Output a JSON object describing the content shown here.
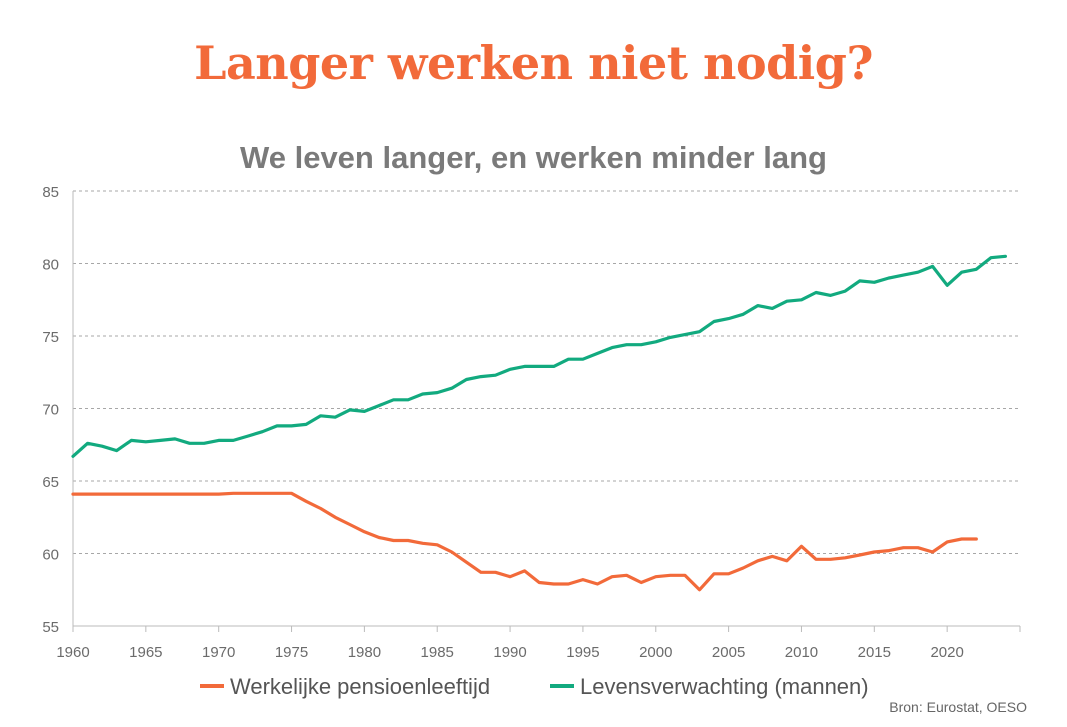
{
  "header": {
    "title": "Langer werken niet nodig?",
    "subtitle": "We leven langer, en werken minder lang"
  },
  "source": "Bron: Eurostat, OESO",
  "colors": {
    "title": "#f26a3a",
    "subtitle": "#7a7a7a",
    "pension": "#f26a3a",
    "life": "#12aa7f",
    "grid": "#8a8a8a",
    "axis": "#bbbbbb"
  },
  "chart_data": {
    "type": "line",
    "title": "We leven langer, en werken minder lang",
    "xlabel": "",
    "ylabel": "",
    "xlim": [
      1960,
      2025
    ],
    "ylim": [
      55,
      85
    ],
    "xticks": [
      1960,
      1965,
      1970,
      1975,
      1980,
      1985,
      1990,
      1995,
      2000,
      2005,
      2010,
      2015,
      2020
    ],
    "yticks": [
      55,
      60,
      65,
      70,
      75,
      80,
      85
    ],
    "grid": true,
    "legend": "bottom",
    "series": [
      {
        "name": "Werkelijke pensioenleeftijd",
        "color": "#f26a3a",
        "x": [
          1960,
          1961,
          1962,
          1963,
          1964,
          1965,
          1966,
          1967,
          1968,
          1969,
          1970,
          1971,
          1972,
          1973,
          1974,
          1975,
          1976,
          1977,
          1978,
          1979,
          1980,
          1981,
          1982,
          1983,
          1984,
          1985,
          1986,
          1987,
          1988,
          1989,
          1990,
          1991,
          1992,
          1993,
          1994,
          1995,
          1996,
          1997,
          1998,
          1999,
          2000,
          2001,
          2002,
          2003,
          2004,
          2005,
          2006,
          2007,
          2008,
          2009,
          2010,
          2011,
          2012,
          2013,
          2014,
          2015,
          2016,
          2017,
          2018,
          2019,
          2020,
          2021,
          2022
        ],
        "y": [
          64.1,
          64.1,
          64.1,
          64.1,
          64.1,
          64.1,
          64.1,
          64.1,
          64.1,
          64.1,
          64.1,
          64.15,
          64.15,
          64.15,
          64.15,
          64.15,
          63.6,
          63.1,
          62.5,
          62.0,
          61.5,
          61.1,
          60.9,
          60.9,
          60.7,
          60.6,
          60.1,
          59.4,
          58.7,
          58.7,
          58.4,
          58.8,
          58.0,
          57.9,
          57.9,
          58.2,
          57.9,
          58.4,
          58.5,
          58.0,
          58.4,
          58.5,
          58.5,
          57.5,
          58.6,
          58.6,
          59.0,
          59.5,
          59.8,
          59.5,
          60.5,
          59.6,
          59.6,
          59.7,
          59.9,
          60.1,
          60.2,
          60.4,
          60.4,
          60.1,
          60.8,
          61.0,
          61.0
        ]
      },
      {
        "name": "Levensverwachting (mannen)",
        "color": "#12aa7f",
        "x": [
          1960,
          1961,
          1962,
          1963,
          1964,
          1965,
          1966,
          1967,
          1968,
          1969,
          1970,
          1971,
          1972,
          1973,
          1974,
          1975,
          1976,
          1977,
          1978,
          1979,
          1980,
          1981,
          1982,
          1983,
          1984,
          1985,
          1986,
          1987,
          1988,
          1989,
          1990,
          1991,
          1992,
          1993,
          1994,
          1995,
          1996,
          1997,
          1998,
          1999,
          2000,
          2001,
          2002,
          2003,
          2004,
          2005,
          2006,
          2007,
          2008,
          2009,
          2010,
          2011,
          2012,
          2013,
          2014,
          2015,
          2016,
          2017,
          2018,
          2019,
          2020,
          2021,
          2022,
          2023,
          2024
        ],
        "y": [
          66.7,
          67.6,
          67.4,
          67.1,
          67.8,
          67.7,
          67.8,
          67.9,
          67.6,
          67.6,
          67.8,
          67.8,
          68.1,
          68.4,
          68.8,
          68.8,
          68.9,
          69.5,
          69.4,
          69.9,
          69.8,
          70.2,
          70.6,
          70.6,
          71.0,
          71.1,
          71.4,
          72.0,
          72.2,
          72.3,
          72.7,
          72.9,
          72.9,
          72.9,
          73.4,
          73.4,
          73.8,
          74.2,
          74.4,
          74.4,
          74.6,
          74.9,
          75.1,
          75.3,
          76.0,
          76.2,
          76.5,
          77.1,
          76.9,
          77.4,
          77.5,
          78.0,
          77.8,
          78.1,
          78.8,
          78.7,
          79.0,
          79.2,
          79.4,
          79.8,
          78.5,
          79.4,
          79.6,
          80.4,
          80.5
        ]
      }
    ]
  }
}
